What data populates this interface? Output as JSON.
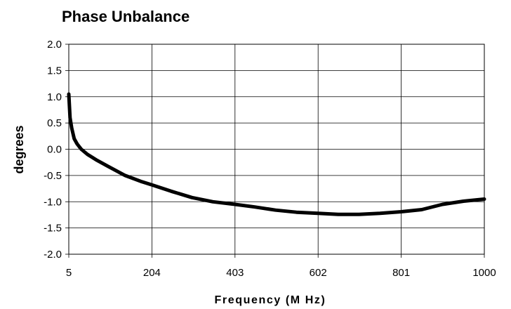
{
  "chart_data": {
    "type": "line",
    "title": "Phase Unbalance",
    "xlabel": "Frequency (M Hz)",
    "ylabel": "degrees",
    "x_tick_labels": [
      "5",
      "204",
      "403",
      "602",
      "801",
      "1000"
    ],
    "y_tick_labels": [
      "2.0",
      "1.5",
      "1.0",
      "0.5",
      "0.0",
      "-0.5",
      "-1.0",
      "-1.5",
      "-2.0"
    ],
    "xlim": [
      5,
      1000
    ],
    "ylim": [
      -2.0,
      2.0
    ],
    "grid": true,
    "legend": "none",
    "line_color": "#000000",
    "series": [
      {
        "x": [
          5,
          8,
          12,
          18,
          25,
          35,
          50,
          70,
          100,
          140,
          180,
          204,
          250,
          300,
          350,
          403,
          450,
          500,
          550,
          602,
          650,
          700,
          750,
          801,
          850,
          900,
          950,
          1000
        ],
        "y": [
          1.05,
          0.6,
          0.4,
          0.2,
          0.1,
          0.0,
          -0.1,
          -0.2,
          -0.33,
          -0.5,
          -0.62,
          -0.68,
          -0.8,
          -0.92,
          -1.0,
          -1.05,
          -1.1,
          -1.16,
          -1.2,
          -1.22,
          -1.24,
          -1.24,
          -1.22,
          -1.19,
          -1.15,
          -1.05,
          -0.99,
          -0.95
        ]
      }
    ]
  }
}
